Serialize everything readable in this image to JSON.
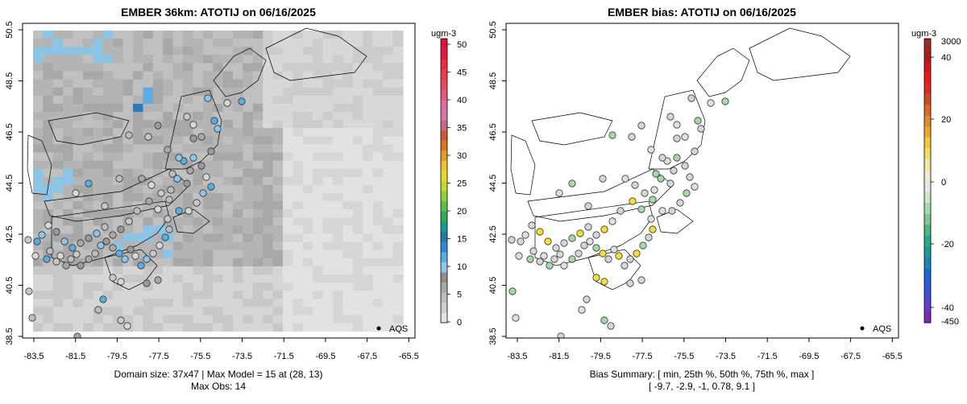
{
  "left_panel": {
    "title": "EMBER 36km: ATOTIJ on 06/16/2025",
    "legend_unit": "ugm-3",
    "legend_ticks": [
      "50",
      "45",
      "40",
      "35",
      "30",
      "25",
      "20",
      "15",
      "10",
      "5",
      "0"
    ],
    "x_ticks": [
      "-83.5",
      "-81.5",
      "-79.5",
      "-77.5",
      "-75.5",
      "-73.5",
      "-71.5",
      "-69.5",
      "-67.5",
      "-65.5"
    ],
    "y_ticks": [
      "50.5",
      "48.5",
      "46.5",
      "44.5",
      "42.5",
      "40.5",
      "38.5"
    ],
    "aqs_label": "AQS",
    "footer_line1": "Domain size: 37x47 | Max Model = 15 at (28, 13)",
    "footer_line2": "Max Obs: 14"
  },
  "right_panel": {
    "title": "EMBER bias: ATOTIJ on 06/16/2025",
    "legend_unit": "ugm-3",
    "legend_ticks_top": "3000",
    "legend_ticks": [
      "40",
      "20",
      "0",
      "-20",
      "-40"
    ],
    "legend_ticks_bottom": "-450",
    "x_ticks": [
      "-83.5",
      "-81.5",
      "-79.5",
      "-77.5",
      "-75.5",
      "-73.5",
      "-71.5",
      "-69.5",
      "-67.5",
      "-65.5"
    ],
    "y_ticks": [
      "50.5",
      "48.5",
      "46.5",
      "44.5",
      "42.5",
      "40.5",
      "38.5"
    ],
    "aqs_label": "AQS",
    "footer_line1": "Bias Summary: [ min, 25th %, 50th %, 75th %, max ]",
    "footer_line2": "[ -9.7,   -2.9,   -1,   0.78,   9.1 ]"
  },
  "colors": {
    "grey_light": "#e4e4e4",
    "grey_mid": "#bdbdbd",
    "grey_dark": "#9e9e9e",
    "blue": "#5aaee0",
    "blue_dark": "#1f76c0",
    "green_light": "#c8e6c0",
    "green": "#8fd08a",
    "yellow": "#f2df3a"
  }
}
